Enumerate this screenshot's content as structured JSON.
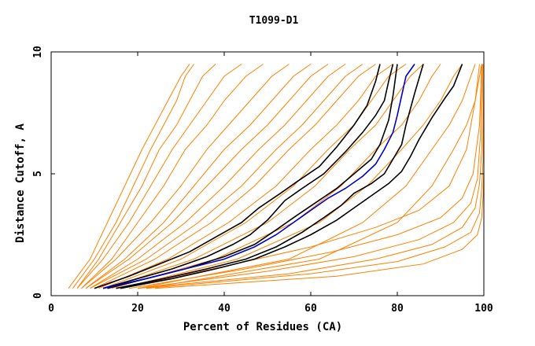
{
  "chart_data": {
    "type": "line",
    "title": "T1099-D1",
    "xlabel": "Percent of Residues (CA)",
    "ylabel": "Distance Cutoff, A",
    "xlim": [
      0,
      100
    ],
    "ylim": [
      0,
      10
    ],
    "xticks": [
      0,
      20,
      40,
      60,
      80,
      100
    ],
    "yticks": [
      0,
      5,
      10
    ],
    "xtick_labels": [
      "0",
      "20",
      "40",
      "60",
      "80",
      "100"
    ],
    "ytick_labels": [
      "0",
      "5",
      "10"
    ],
    "grid": false,
    "legend": "none",
    "background_colour": "#ff8000",
    "highlight_colours": [
      "#000000",
      "#0000cc"
    ],
    "background_models": [
      {
        "x": [
          4,
          9,
          13,
          17,
          21,
          24,
          27,
          30,
          32
        ],
        "y": [
          0.3,
          1.5,
          3,
          4.5,
          6,
          7,
          8,
          9,
          9.5
        ]
      },
      {
        "x": [
          5,
          10,
          15,
          19,
          23,
          26,
          29,
          31,
          33
        ],
        "y": [
          0.3,
          1.5,
          3,
          4.5,
          6,
          7,
          8,
          9,
          9.5
        ]
      },
      {
        "x": [
          6,
          11,
          16,
          21,
          25,
          29,
          32,
          35,
          38
        ],
        "y": [
          0.3,
          1.5,
          3,
          4.5,
          6,
          7,
          8,
          9,
          9.5
        ]
      },
      {
        "x": [
          6,
          12,
          18,
          23,
          28,
          32,
          36,
          40,
          44
        ],
        "y": [
          0.3,
          1.5,
          3,
          4.5,
          6,
          7,
          8,
          9,
          9.5
        ]
      },
      {
        "x": [
          7,
          14,
          20,
          26,
          31,
          36,
          40,
          45,
          49
        ],
        "y": [
          0.3,
          1.5,
          3,
          4.5,
          6,
          7,
          8,
          9,
          9.5
        ]
      },
      {
        "x": [
          7,
          15,
          23,
          30,
          36,
          41,
          46,
          51,
          55
        ],
        "y": [
          0.3,
          1.5,
          3,
          4.5,
          6,
          7,
          8,
          9,
          9.5
        ]
      },
      {
        "x": [
          8,
          17,
          26,
          33,
          40,
          46,
          51,
          56,
          60
        ],
        "y": [
          0.3,
          1.5,
          3,
          4.5,
          6,
          7,
          8,
          9,
          9.5
        ]
      },
      {
        "x": [
          8,
          18,
          28,
          36,
          44,
          50,
          55,
          60,
          64
        ],
        "y": [
          0.3,
          1.5,
          3,
          4.5,
          6,
          7,
          8,
          9,
          9.5
        ]
      },
      {
        "x": [
          9,
          20,
          31,
          40,
          48,
          54,
          59,
          64,
          68
        ],
        "y": [
          0.3,
          1.5,
          3,
          4.5,
          6,
          7,
          8,
          9,
          9.5
        ]
      },
      {
        "x": [
          9,
          22,
          34,
          44,
          52,
          58,
          63,
          68,
          72
        ],
        "y": [
          0.3,
          1.5,
          3,
          4.5,
          6,
          7,
          8,
          9,
          9.5
        ]
      },
      {
        "x": [
          10,
          24,
          37,
          47,
          55,
          61,
          66,
          71,
          75
        ],
        "y": [
          0.3,
          1.5,
          3,
          4.5,
          6,
          7,
          8,
          9,
          9.5
        ]
      },
      {
        "x": [
          11,
          27,
          41,
          52,
          60,
          66,
          71,
          75,
          79
        ],
        "y": [
          0.3,
          1.5,
          3,
          4.5,
          6,
          7,
          8,
          9,
          9.5
        ]
      },
      {
        "x": [
          12,
          30,
          45,
          56,
          64,
          70,
          74,
          78,
          82
        ],
        "y": [
          0.3,
          1.5,
          3,
          4.5,
          6,
          7,
          8,
          9,
          9.5
        ]
      },
      {
        "x": [
          13,
          33,
          50,
          61,
          69,
          75,
          79,
          83,
          86
        ],
        "y": [
          0.3,
          1.5,
          3,
          4.5,
          6,
          7,
          8,
          9,
          9.5
        ]
      },
      {
        "x": [
          14,
          38,
          56,
          67,
          75,
          81,
          85,
          88,
          90
        ],
        "y": [
          0.3,
          1.5,
          3,
          4.5,
          6,
          7,
          8,
          9,
          9.5
        ]
      },
      {
        "x": [
          16,
          43,
          62,
          73,
          81,
          86,
          90,
          93,
          95
        ],
        "y": [
          0.3,
          1.5,
          3,
          4.5,
          6,
          7,
          8,
          9,
          9.5
        ]
      },
      {
        "x": [
          20,
          55,
          72,
          82,
          88,
          92,
          95,
          97,
          98
        ],
        "y": [
          0.3,
          1.5,
          3,
          4.5,
          6,
          7,
          8,
          9,
          9.5
        ]
      },
      {
        "x": [
          22,
          62,
          80,
          88,
          93,
          96,
          98,
          99,
          99.5
        ],
        "y": [
          0.3,
          1.5,
          3,
          4.5,
          6,
          7,
          8,
          9,
          9.5
        ]
      },
      {
        "x": [
          16,
          40,
          60,
          75,
          85,
          92,
          96,
          98,
          99
        ],
        "y": [
          0.3,
          1.2,
          2,
          2.8,
          3.5,
          4.5,
          6,
          8,
          9.5
        ]
      },
      {
        "x": [
          18,
          45,
          65,
          80,
          90,
          95,
          97.5,
          99,
          99.5
        ],
        "y": [
          0.3,
          1.1,
          1.8,
          2.5,
          3.2,
          4,
          5,
          7,
          9.5
        ]
      },
      {
        "x": [
          20,
          50,
          70,
          85,
          93,
          97,
          98.5,
          99.2,
          99.6
        ],
        "y": [
          0.3,
          1,
          1.6,
          2.3,
          3,
          3.8,
          4.8,
          6.5,
          9.5
        ]
      },
      {
        "x": [
          20,
          55,
          75,
          88,
          95,
          98,
          99,
          99.5,
          99.8
        ],
        "y": [
          0.3,
          0.9,
          1.5,
          2.1,
          2.8,
          3.6,
          4.6,
          6,
          9.5
        ]
      },
      {
        "x": [
          22,
          60,
          80,
          91,
          97,
          99,
          99.5,
          99.8,
          100
        ],
        "y": [
          0.3,
          0.9,
          1.4,
          2,
          2.6,
          3.4,
          4.4,
          5.5,
          9.5
        ]
      },
      {
        "x": [
          24,
          66,
          86,
          95,
          98.5,
          99.5,
          99.8,
          100,
          100
        ],
        "y": [
          0.3,
          0.8,
          1.3,
          1.9,
          2.5,
          3.2,
          4,
          5.2,
          9.5
        ]
      }
    ],
    "series": [
      {
        "colour": "#000000",
        "x": [
          10,
          18,
          25,
          32,
          38,
          44,
          48,
          53,
          57,
          62,
          66,
          70,
          73,
          75,
          76
        ],
        "y": [
          0.3,
          0.8,
          1.3,
          1.8,
          2.4,
          3,
          3.6,
          4.2,
          4.7,
          5.3,
          6.1,
          7,
          7.8,
          8.8,
          9.5
        ]
      },
      {
        "colour": "#000000",
        "x": [
          12,
          20,
          28,
          36,
          42,
          46,
          50,
          54,
          58,
          63,
          68,
          72,
          75,
          77,
          78,
          79
        ],
        "y": [
          0.3,
          0.7,
          1.1,
          1.6,
          2.1,
          2.5,
          3.1,
          3.9,
          4.4,
          5,
          5.9,
          6.7,
          7.4,
          8,
          8.8,
          9.5
        ]
      },
      {
        "colour": "#000000",
        "x": [
          13,
          22,
          31,
          40,
          47,
          52,
          56,
          61,
          66,
          70,
          74,
          76,
          78,
          79,
          80
        ],
        "y": [
          0.3,
          0.7,
          1.1,
          1.6,
          2.1,
          2.7,
          3.2,
          3.8,
          4.4,
          5,
          5.6,
          6.2,
          7.2,
          8.2,
          9.5
        ]
      },
      {
        "colour": "#000000",
        "x": [
          15,
          26,
          36,
          45,
          52,
          58,
          63,
          67,
          70,
          74,
          77,
          79,
          81,
          82,
          84,
          86
        ],
        "y": [
          0.3,
          0.7,
          1.1,
          1.5,
          2,
          2.6,
          3.2,
          3.7,
          4.2,
          4.6,
          5,
          5.6,
          6.2,
          7,
          8.3,
          9.5
        ]
      },
      {
        "colour": "#000000",
        "x": [
          16,
          28,
          38,
          47,
          54,
          60,
          66,
          70,
          74,
          78,
          81,
          83,
          85,
          88,
          91,
          93,
          95
        ],
        "y": [
          0.3,
          0.7,
          1.1,
          1.5,
          2,
          2.5,
          3.1,
          3.6,
          4.1,
          4.6,
          5.1,
          5.7,
          6.4,
          7.3,
          8.1,
          8.6,
          9.5
        ]
      },
      {
        "colour": "#0000cc",
        "x": [
          12,
          22,
          31,
          40,
          47,
          52,
          56,
          60,
          64,
          68,
          72,
          75,
          77,
          79,
          80,
          81,
          82,
          84
        ],
        "y": [
          0.3,
          0.7,
          1.1,
          1.5,
          2,
          2.5,
          3,
          3.5,
          4,
          4.4,
          4.9,
          5.4,
          6,
          6.7,
          7.4,
          8.2,
          9,
          9.5
        ]
      }
    ]
  }
}
